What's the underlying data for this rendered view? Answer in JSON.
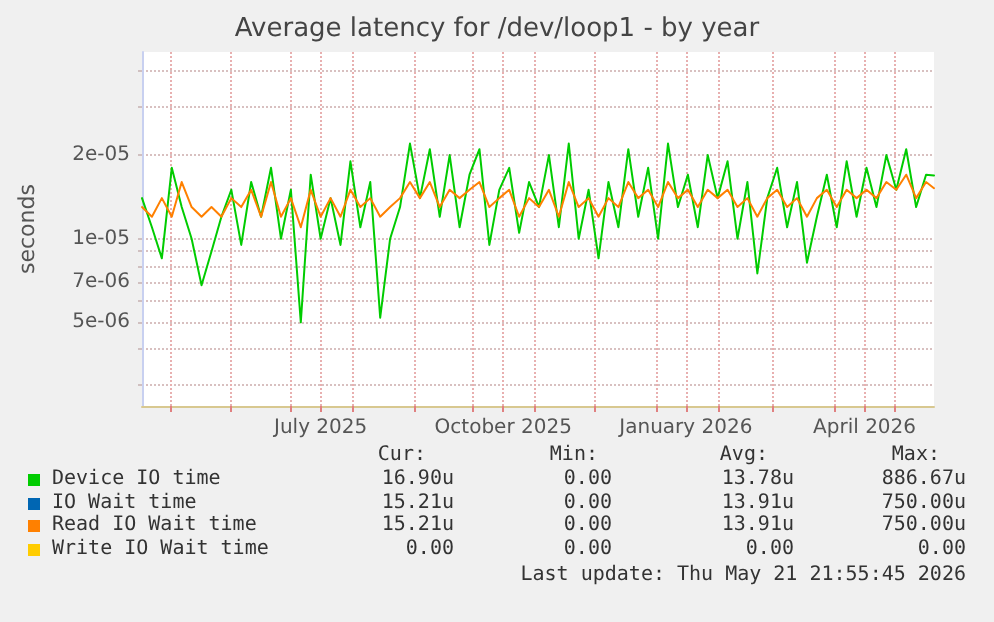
{
  "chart_data": {
    "type": "line",
    "title": "Average latency for /dev/loop1 - by year",
    "ylabel": "seconds",
    "x": [
      "2025-04-17",
      "2025-04-22",
      "2025-04-27",
      "2025-05-02",
      "2025-05-07",
      "2025-05-12",
      "2025-05-17",
      "2025-05-22",
      "2025-05-27",
      "2025-06-01",
      "2025-06-06",
      "2025-06-11",
      "2025-06-16",
      "2025-06-21",
      "2025-06-26",
      "2025-07-01",
      "2025-07-06",
      "2025-07-11",
      "2025-07-16",
      "2025-07-21",
      "2025-07-26",
      "2025-07-31",
      "2025-08-05",
      "2025-08-10",
      "2025-08-15",
      "2025-08-20",
      "2025-08-25",
      "2025-08-30",
      "2025-09-04",
      "2025-09-09",
      "2025-09-14",
      "2025-09-19",
      "2025-09-24",
      "2025-09-29",
      "2025-10-04",
      "2025-10-09",
      "2025-10-14",
      "2025-10-19",
      "2025-10-24",
      "2025-10-29",
      "2025-11-03",
      "2025-11-08",
      "2025-11-13",
      "2025-11-18",
      "2025-11-23",
      "2025-11-28",
      "2025-12-03",
      "2025-12-08",
      "2025-12-13",
      "2025-12-18",
      "2025-12-23",
      "2025-12-28",
      "2026-01-02",
      "2026-01-07",
      "2026-01-12",
      "2026-01-17",
      "2026-01-22",
      "2026-01-27",
      "2026-02-01",
      "2026-02-06",
      "2026-02-11",
      "2026-02-16",
      "2026-02-21",
      "2026-02-26",
      "2026-03-03",
      "2026-03-08",
      "2026-03-13",
      "2026-03-18",
      "2026-03-23",
      "2026-03-28",
      "2026-04-02",
      "2026-04-07",
      "2026-04-12",
      "2026-04-17",
      "2026-04-22",
      "2026-04-27",
      "2026-05-02",
      "2026-05-07",
      "2026-05-12",
      "2026-05-17",
      "2026-05-21"
    ],
    "series": [
      {
        "name": "Device IO time",
        "color": "#00cc00",
        "values": [
          1.4e-05,
          1.1e-05,
          8.5e-06,
          1.8e-05,
          1.3e-05,
          1e-05,
          6.8e-06,
          9e-06,
          1.2e-05,
          1.5e-05,
          9.5e-06,
          1.6e-05,
          1.2e-05,
          1.8e-05,
          1e-05,
          1.5e-05,
          5e-06,
          1.7e-05,
          1e-05,
          1.4e-05,
          9.5e-06,
          1.9e-05,
          1.1e-05,
          1.6e-05,
          5.2e-06,
          1e-05,
          1.3e-05,
          2.2e-05,
          1.4e-05,
          2.1e-05,
          1.2e-05,
          2e-05,
          1.1e-05,
          1.7e-05,
          2.1e-05,
          9.5e-06,
          1.5e-05,
          1.8e-05,
          1.05e-05,
          1.6e-05,
          1.3e-05,
          2e-05,
          1.1e-05,
          2.2e-05,
          1e-05,
          1.5e-05,
          8.5e-06,
          1.6e-05,
          1.1e-05,
          2.1e-05,
          1.2e-05,
          1.8e-05,
          1e-05,
          2.2e-05,
          1.3e-05,
          1.7e-05,
          1.1e-05,
          2e-05,
          1.4e-05,
          1.9e-05,
          1e-05,
          1.6e-05,
          7.5e-06,
          1.4e-05,
          1.8e-05,
          1.1e-05,
          1.6e-05,
          8.2e-06,
          1.2e-05,
          1.7e-05,
          1.1e-05,
          1.9e-05,
          1.2e-05,
          1.8e-05,
          1.3e-05,
          2e-05,
          1.5e-05,
          2.1e-05,
          1.3e-05,
          1.7e-05,
          1.69e-05
        ]
      },
      {
        "name": "IO Wait time",
        "color": "#0066b3",
        "values": [
          null,
          null,
          null,
          null,
          null,
          null,
          null,
          null,
          null,
          null,
          null,
          null,
          null,
          null,
          null,
          null,
          null,
          null,
          null,
          null,
          null,
          null,
          null,
          null,
          null,
          null,
          null,
          null,
          null,
          null,
          null,
          null,
          null,
          null,
          null,
          null,
          null,
          null,
          null,
          null,
          null,
          null,
          null,
          null,
          null,
          null,
          null,
          null,
          null,
          null,
          null,
          null,
          null,
          null,
          null,
          null,
          null,
          null,
          null,
          null,
          null,
          null,
          null,
          null,
          null,
          null,
          null,
          null,
          null,
          null,
          null,
          null,
          null,
          null,
          null,
          null,
          null,
          null,
          null,
          null,
          null
        ]
      },
      {
        "name": "Read IO Wait time",
        "color": "#ff8000",
        "values": [
          1.3e-05,
          1.2e-05,
          1.4e-05,
          1.2e-05,
          1.6e-05,
          1.3e-05,
          1.2e-05,
          1.3e-05,
          1.2e-05,
          1.4e-05,
          1.3e-05,
          1.5e-05,
          1.2e-05,
          1.6e-05,
          1.2e-05,
          1.4e-05,
          1.1e-05,
          1.5e-05,
          1.2e-05,
          1.4e-05,
          1.2e-05,
          1.5e-05,
          1.3e-05,
          1.4e-05,
          1.2e-05,
          1.3e-05,
          1.4e-05,
          1.6e-05,
          1.4e-05,
          1.6e-05,
          1.3e-05,
          1.5e-05,
          1.4e-05,
          1.5e-05,
          1.6e-05,
          1.3e-05,
          1.4e-05,
          1.5e-05,
          1.2e-05,
          1.4e-05,
          1.3e-05,
          1.5e-05,
          1.2e-05,
          1.6e-05,
          1.3e-05,
          1.4e-05,
          1.2e-05,
          1.4e-05,
          1.3e-05,
          1.6e-05,
          1.4e-05,
          1.5e-05,
          1.3e-05,
          1.6e-05,
          1.4e-05,
          1.5e-05,
          1.3e-05,
          1.5e-05,
          1.4e-05,
          1.5e-05,
          1.3e-05,
          1.4e-05,
          1.2e-05,
          1.4e-05,
          1.5e-05,
          1.3e-05,
          1.4e-05,
          1.2e-05,
          1.4e-05,
          1.5e-05,
          1.3e-05,
          1.5e-05,
          1.4e-05,
          1.5e-05,
          1.4e-05,
          1.6e-05,
          1.5e-05,
          1.7e-05,
          1.4e-05,
          1.6e-05,
          1.52e-05
        ]
      },
      {
        "name": "Write IO Wait time",
        "color": "#ffcc00",
        "values": [
          null,
          null,
          null,
          null,
          null,
          null,
          null,
          null,
          null,
          null,
          null,
          null,
          null,
          null,
          null,
          null,
          null,
          null,
          null,
          null,
          null,
          null,
          null,
          null,
          null,
          null,
          null,
          null,
          null,
          null,
          null,
          null,
          null,
          null,
          null,
          null,
          null,
          null,
          null,
          null,
          null,
          null,
          null,
          null,
          null,
          null,
          null,
          null,
          null,
          null,
          null,
          null,
          null,
          null,
          null,
          null,
          null,
          null,
          null,
          null,
          null,
          null,
          null,
          null,
          null,
          null,
          null,
          null,
          null,
          null,
          null,
          null,
          null,
          null,
          null,
          null,
          null,
          null,
          null,
          null,
          null
        ]
      }
    ],
    "log": "y",
    "xlim": [
      "2025-04-17",
      "2026-05-21"
    ],
    "xticks": [
      {
        "value": "2025-05-01",
        "label": null
      },
      {
        "value": "2025-06-01",
        "label": null
      },
      {
        "value": "2025-07-01",
        "label": null
      },
      {
        "value": "2025-07-16",
        "label": "July 2025"
      },
      {
        "value": "2025-08-01",
        "label": null
      },
      {
        "value": "2025-09-01",
        "label": null
      },
      {
        "value": "2025-10-01",
        "label": null
      },
      {
        "value": "2025-10-16",
        "label": "October 2025"
      },
      {
        "value": "2025-11-01",
        "label": null
      },
      {
        "value": "2025-12-01",
        "label": null
      },
      {
        "value": "2026-01-01",
        "label": null
      },
      {
        "value": "2026-01-16",
        "label": "January 2026"
      },
      {
        "value": "2026-02-01",
        "label": null
      },
      {
        "value": "2026-03-01",
        "label": null
      },
      {
        "value": "2026-04-01",
        "label": null
      },
      {
        "value": "2026-04-16",
        "label": "April 2026"
      },
      {
        "value": "2026-05-01",
        "label": null
      }
    ],
    "ylim": [
      2.5e-06,
      4.7e-05
    ],
    "yticks": [
      {
        "value": 3e-06,
        "label": null
      },
      {
        "value": 4e-06,
        "label": null
      },
      {
        "value": 5e-06,
        "label": "5e-06"
      },
      {
        "value": 6e-06,
        "label": null
      },
      {
        "value": 7e-06,
        "label": "7e-06"
      },
      {
        "value": 8e-06,
        "label": null
      },
      {
        "value": 9e-06,
        "label": null
      },
      {
        "value": 1e-05,
        "label": "1e-05"
      },
      {
        "value": 2e-05,
        "label": "2e-05"
      },
      {
        "value": 3e-05,
        "label": null
      },
      {
        "value": 4e-05,
        "label": null
      }
    ],
    "grid": true,
    "legend": "bottom left",
    "marker": "none",
    "line_style": "solid",
    "annotations": [
      "Cur:",
      "Min:",
      "Avg:",
      "Max:",
      "16.90u",
      "0.00",
      "13.78u",
      "886.67u",
      "15.21u",
      "0.00",
      "13.91u",
      "750.00u",
      "15.21u",
      "0.00",
      "13.91u",
      "750.00u",
      "0.00",
      "0.00",
      "0.00",
      "0.00",
      "Last update: Thu May 21 21:55:45 2026"
    ]
  }
}
